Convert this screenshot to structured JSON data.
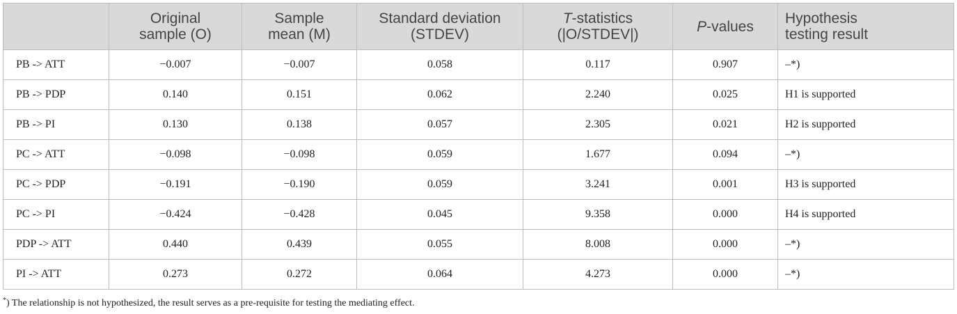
{
  "headers": {
    "h0": "",
    "original": [
      "Original",
      "sample (O)"
    ],
    "mean": [
      "Sample",
      "mean (M)"
    ],
    "stdev": [
      "Standard deviation",
      "(STDEV)"
    ],
    "tstat": {
      "italic": "T",
      "rest": "-statistics",
      "line2": "(|O/STDEV|)"
    },
    "pval": {
      "italic": "P",
      "rest": "-values"
    },
    "result": [
      "Hypothesis",
      "testing result"
    ]
  },
  "rows": [
    {
      "path": "PB -> ATT",
      "original": "−0.007",
      "mean": "−0.007",
      "stdev": "0.058",
      "t": "0.117",
      "p": "0.907",
      "result": "–*)"
    },
    {
      "path": "PB -> PDP",
      "original": "0.140",
      "mean": "0.151",
      "stdev": "0.062",
      "t": "2.240",
      "p": "0.025",
      "result": "H1 is supported"
    },
    {
      "path": "PB -> PI",
      "original": "0.130",
      "mean": "0.138",
      "stdev": "0.057",
      "t": "2.305",
      "p": "0.021",
      "result": "H2 is supported"
    },
    {
      "path": "PC -> ATT",
      "original": "−0.098",
      "mean": "−0.098",
      "stdev": "0.059",
      "t": "1.677",
      "p": "0.094",
      "result": "–*)"
    },
    {
      "path": "PC -> PDP",
      "original": "−0.191",
      "mean": "−0.190",
      "stdev": "0.059",
      "t": "3.241",
      "p": "0.001",
      "result": "H3 is supported"
    },
    {
      "path": "PC -> PI",
      "original": "−0.424",
      "mean": "−0.428",
      "stdev": "0.045",
      "t": "9.358",
      "p": "0.000",
      "result": "H4 is supported"
    },
    {
      "path": "PDP -> ATT",
      "original": "0.440",
      "mean": "0.439",
      "stdev": "0.055",
      "t": "8.008",
      "p": "0.000",
      "result": "–*)"
    },
    {
      "path": "PI -> ATT",
      "original": "0.273",
      "mean": "0.272",
      "stdev": "0.064",
      "t": "4.273",
      "p": "0.000",
      "result": "–*)"
    }
  ],
  "footnote": {
    "marker": "*",
    "text": ") The relationship is not hypothesized, the result serves as a pre-requisite for testing the mediating effect."
  }
}
